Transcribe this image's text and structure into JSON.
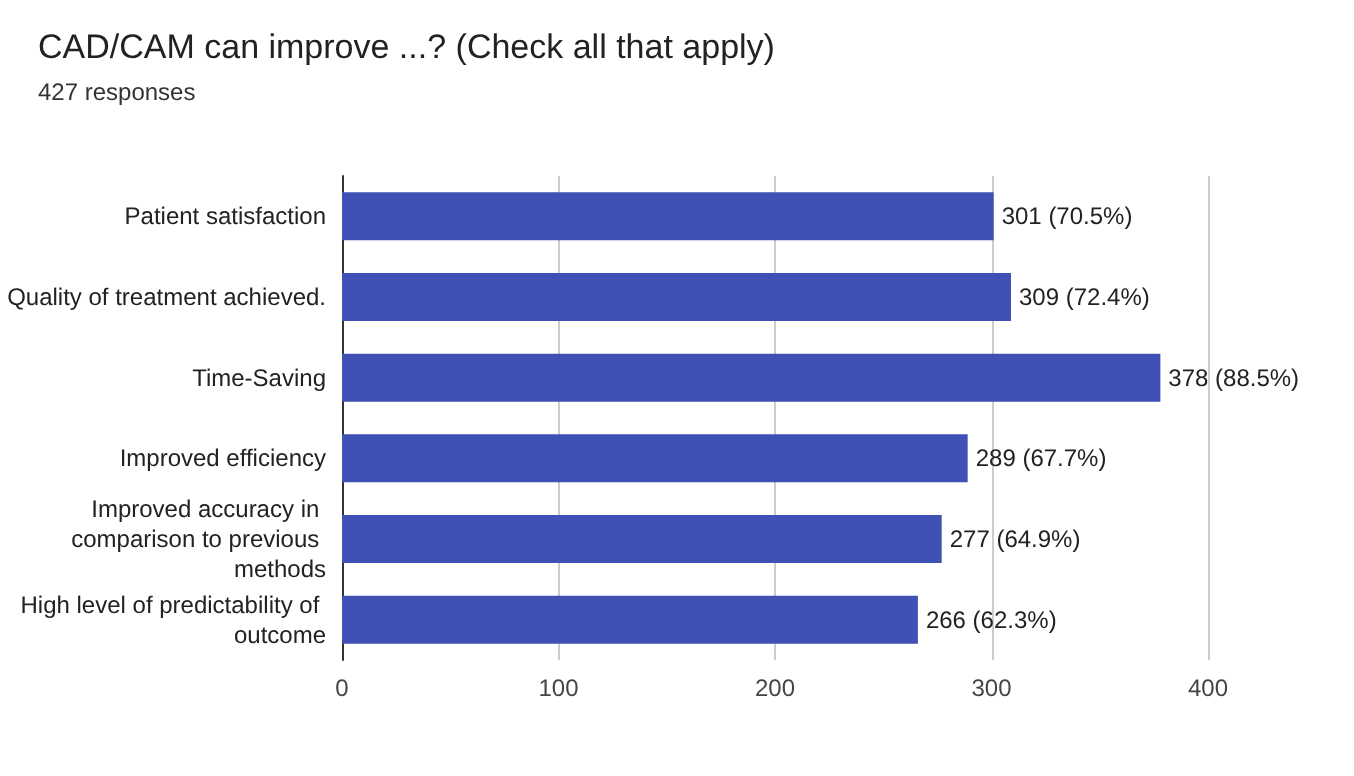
{
  "chart_data": {
    "type": "bar",
    "orientation": "horizontal",
    "title": "CAD/CAM can improve ...? (Check all that apply)",
    "subtitle": "427 responses",
    "categories": [
      "Patient satisfaction",
      "Quality of treatment achieved.",
      "Time-Saving",
      "Improved efficiency",
      "Improved accuracy in comparison to previous methods",
      "High level of predictability of outcome"
    ],
    "values": [
      301,
      309,
      378,
      289,
      277,
      266
    ],
    "value_labels": [
      "301 (70.5%)",
      "309 (72.4%)",
      "378 (88.5%)",
      "289 (67.7%)",
      "277 (64.9%)",
      "266 (62.3%)"
    ],
    "color": "#3f51b5",
    "xlim": [
      0,
      400
    ],
    "xticks": [
      0,
      100,
      200,
      300,
      400
    ],
    "grid": "x"
  }
}
